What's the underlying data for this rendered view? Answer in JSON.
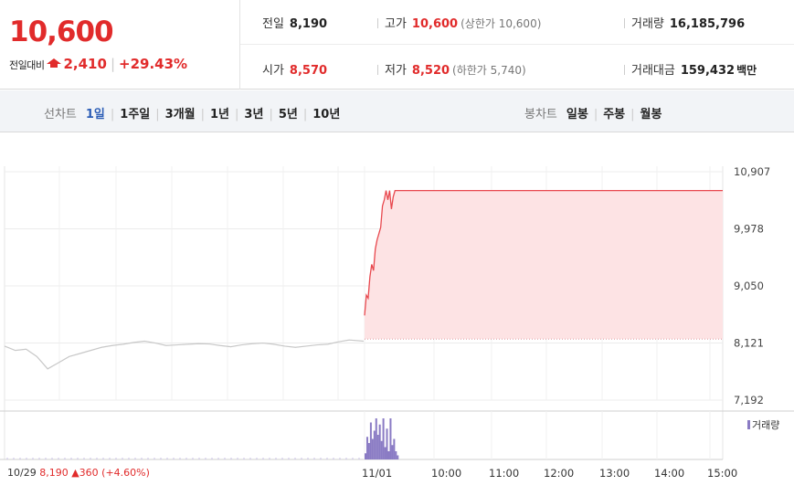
{
  "quote": {
    "price": "10,600",
    "diff_label": "전일대비",
    "diff_value": "2,410",
    "diff_rate": "+29.43%",
    "rows": [
      {
        "key": "전일",
        "value": "8,190"
      },
      {
        "key": "고가",
        "value": "10,600",
        "sub": "(상한가 10,600)"
      },
      {
        "key": "거래량",
        "value": "16,185,796"
      },
      {
        "key": "시가",
        "value": "8,570"
      },
      {
        "key": "저가",
        "value": "8,520",
        "sub": "(하한가 5,740)"
      },
      {
        "key": "거래대금",
        "value": "159,432",
        "unit": "백만"
      }
    ]
  },
  "tabs": {
    "line_label": "선차트",
    "line": [
      "1일",
      "1주일",
      "3개월",
      "1년",
      "3년",
      "5년",
      "10년"
    ],
    "selected": "1일",
    "candle_label": "봉차트",
    "candle": [
      "일봉",
      "주봉",
      "월봉"
    ]
  },
  "chart_data": {
    "type": "line",
    "y_ticks": [
      "10,907",
      "9,978",
      "9,050",
      "8,121",
      "7,192"
    ],
    "ylim": [
      7192,
      10907
    ],
    "x_ticks": [
      "11/01",
      "10:00",
      "11:00",
      "12:00",
      "13:00",
      "14:00",
      "15:00"
    ],
    "prev_close": 8190,
    "prev_day": {
      "label": "10/29",
      "close": "8,190",
      "change": "360",
      "rate": "(+4.60%)"
    },
    "volume_legend": "거래량",
    "series": [
      {
        "segment": "previous-day",
        "x": [
          0,
          0.03,
          0.06,
          0.09,
          0.12,
          0.15,
          0.18,
          0.21,
          0.24,
          0.27,
          0.3,
          0.33,
          0.36,
          0.39,
          0.42,
          0.45,
          0.48,
          0.51,
          0.54,
          0.57,
          0.6,
          0.63,
          0.66,
          0.69,
          0.72,
          0.75,
          0.78,
          0.81,
          0.84,
          0.87,
          0.9,
          0.93,
          0.96,
          1.0
        ],
        "y": [
          8070,
          8000,
          8020,
          7900,
          7700,
          7800,
          7900,
          7950,
          8000,
          8050,
          8080,
          8100,
          8130,
          8150,
          8120,
          8080,
          8090,
          8100,
          8110,
          8105,
          8080,
          8060,
          8090,
          8110,
          8120,
          8100,
          8070,
          8050,
          8070,
          8090,
          8100,
          8140,
          8170,
          8150
        ]
      },
      {
        "segment": "today",
        "x": [
          0,
          0.005,
          0.01,
          0.015,
          0.02,
          0.025,
          0.03,
          0.035,
          0.04,
          0.045,
          0.05,
          0.055,
          0.06,
          0.065,
          0.07,
          0.075,
          0.08,
          0.085,
          0.09,
          0.1,
          0.15,
          0.3,
          0.5,
          0.7,
          0.9,
          1.0
        ],
        "y": [
          8570,
          8900,
          8850,
          9200,
          9400,
          9300,
          9650,
          9800,
          9900,
          10000,
          10350,
          10450,
          10600,
          10450,
          10600,
          10300,
          10500,
          10600,
          10600,
          10600,
          10600,
          10600,
          10600,
          10600,
          10600,
          10600
        ]
      }
    ],
    "volume": {
      "segment": "today",
      "x": [
        0.0,
        0.005,
        0.01,
        0.015,
        0.02,
        0.025,
        0.03,
        0.035,
        0.04,
        0.045,
        0.05,
        0.055,
        0.06,
        0.065,
        0.07,
        0.075,
        0.08,
        0.085,
        0.09
      ],
      "v": [
        0.15,
        0.55,
        0.4,
        0.9,
        0.5,
        0.7,
        1.0,
        0.6,
        0.85,
        0.45,
        1.0,
        0.3,
        0.75,
        0.2,
        1.0,
        0.35,
        0.5,
        0.2,
        0.1
      ]
    }
  }
}
